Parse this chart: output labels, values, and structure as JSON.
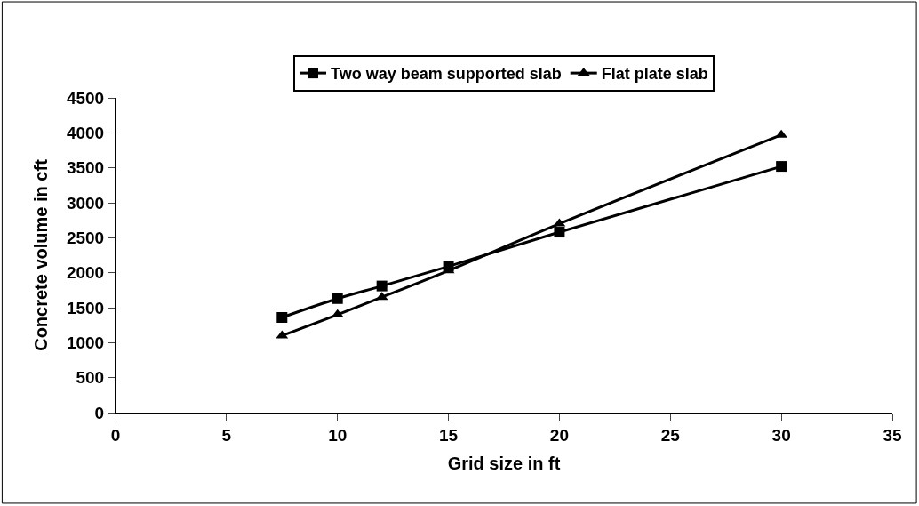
{
  "chart_data": {
    "type": "line",
    "xlabel": "Grid size in ft",
    "ylabel": "Concrete volume in cft",
    "x": [
      7.5,
      10,
      12,
      15,
      20,
      30
    ],
    "series": [
      {
        "name": "Two way beam supported slab",
        "color": "#000000",
        "marker": "square",
        "values": [
          1360,
          1630,
          1810,
          2090,
          2580,
          3520
        ]
      },
      {
        "name": "Flat plate slab",
        "color": "#000000",
        "marker": "triangle",
        "values": [
          1100,
          1400,
          1650,
          2030,
          2700,
          3970
        ]
      }
    ],
    "xlim": [
      0,
      35
    ],
    "xticks": [
      0,
      5,
      10,
      15,
      20,
      25,
      30,
      35
    ],
    "ylim": [
      0,
      4500
    ],
    "yticks": [
      0,
      500,
      1000,
      1500,
      2000,
      2500,
      3000,
      3500,
      4000,
      4500
    ],
    "legend": "top",
    "line_style": "solid"
  }
}
